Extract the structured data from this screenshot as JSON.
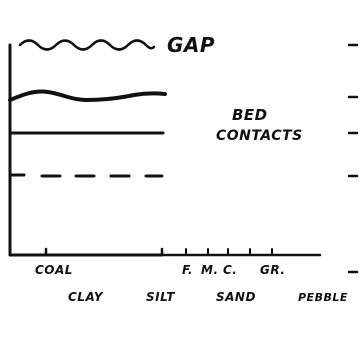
{
  "labels": {
    "gap": "GAP",
    "bed_line1": "BED",
    "bed_line2": "CONTACTS",
    "coal": "COAL",
    "clay": "CLAY",
    "silt": "SILT",
    "fine": "F.",
    "medium": "M.",
    "coarse": "C.",
    "granule": "GR.",
    "sand": "SAND",
    "pebble": "PEBBLE"
  },
  "colors": {
    "ink": "#111111",
    "background": "#ffffff"
  }
}
